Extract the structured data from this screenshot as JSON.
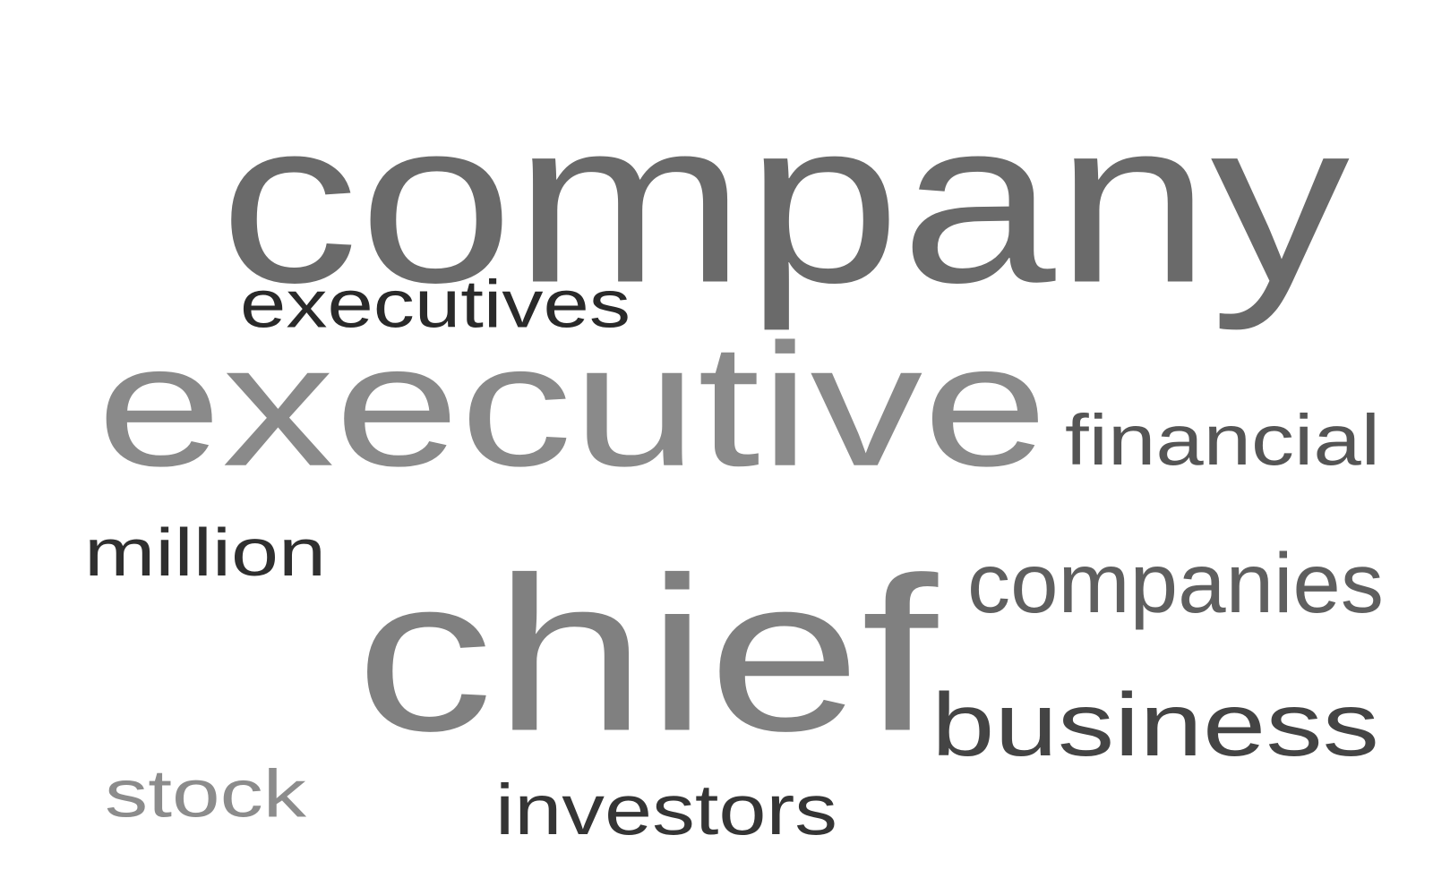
{
  "word_cloud": {
    "words": [
      {
        "id": "company",
        "text": "company",
        "color": "#6a6a6a"
      },
      {
        "id": "executives",
        "text": "executives",
        "color": "#2a2a2a"
      },
      {
        "id": "executive",
        "text": "executive",
        "color": "#8a8a8a"
      },
      {
        "id": "financial",
        "text": "financial",
        "color": "#555555"
      },
      {
        "id": "million",
        "text": "million",
        "color": "#2f2f2f"
      },
      {
        "id": "companies",
        "text": "companies",
        "color": "#5f5f5f"
      },
      {
        "id": "chief",
        "text": "chief",
        "color": "#808080"
      },
      {
        "id": "business",
        "text": "business",
        "color": "#444444"
      },
      {
        "id": "stock",
        "text": "stock",
        "color": "#8c8c8c"
      },
      {
        "id": "investors",
        "text": "investors",
        "color": "#353535"
      }
    ]
  }
}
